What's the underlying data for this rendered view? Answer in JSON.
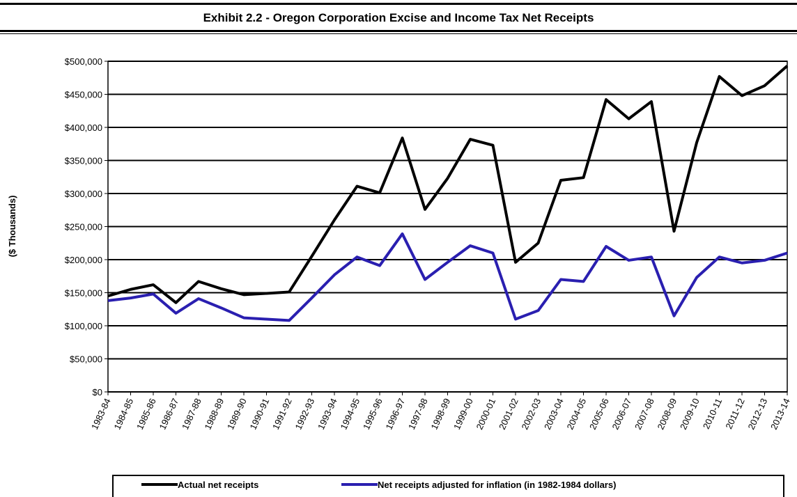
{
  "chart_data": {
    "type": "line",
    "title": "Exhibit 2.2 - Oregon Corporation Excise and Income Tax Net Receipts",
    "y_label": "($ Thousands)",
    "categories": [
      "1983-84",
      "1984-85",
      "1985-86",
      "1986-87",
      "1987-88",
      "1988-89",
      "1989-90",
      "1990-91",
      "1991-92",
      "1992-93",
      "1993-94",
      "1994-95",
      "1995-96",
      "1996-97",
      "1997-98",
      "1998-99",
      "1999-00",
      "2000-01",
      "2001-02",
      "2002-03",
      "2003-04",
      "2004-05",
      "2005-06",
      "2006-07",
      "2007-08",
      "2008-09",
      "2009-10",
      "2010-11",
      "2011-12",
      "2012-13",
      "2013-14"
    ],
    "series": [
      {
        "name": "Actual net receipts",
        "color": "#000000",
        "values": [
          145000,
          155000,
          162000,
          135000,
          167000,
          156000,
          147000,
          149000,
          151000,
          205000,
          260000,
          311000,
          301000,
          384000,
          276000,
          323000,
          382000,
          373000,
          196000,
          225000,
          320000,
          324000,
          442000,
          413000,
          439000,
          243000,
          377000,
          477000,
          448000,
          463000,
          493000
        ]
      },
      {
        "name": "Net receipts adjusted for inflation (in 1982-1984 dollars)",
        "color": "#2a1fb0",
        "values": [
          138000,
          142000,
          148000,
          119000,
          141000,
          127000,
          112000,
          110000,
          108000,
          142000,
          177000,
          204000,
          191000,
          239000,
          170000,
          196000,
          221000,
          210000,
          110000,
          123000,
          170000,
          167000,
          220000,
          199000,
          204000,
          115000,
          173000,
          204000,
          195000,
          199000,
          210000
        ]
      }
    ],
    "ylim": [
      0,
      500000
    ],
    "yticks": [
      {
        "value": 0,
        "label": "$0"
      },
      {
        "value": 50000,
        "label": "$50,000"
      },
      {
        "value": 100000,
        "label": "$100,000"
      },
      {
        "value": 150000,
        "label": "$150,000"
      },
      {
        "value": 200000,
        "label": "$200,000"
      },
      {
        "value": 250000,
        "label": "$250,000"
      },
      {
        "value": 300000,
        "label": "$300,000"
      },
      {
        "value": 350000,
        "label": "$350,000"
      },
      {
        "value": 400000,
        "label": "$400,000"
      },
      {
        "value": 450000,
        "label": "$450,000"
      },
      {
        "value": 500000,
        "label": "$500,000"
      }
    ],
    "grid": true,
    "legend": "bottom"
  }
}
